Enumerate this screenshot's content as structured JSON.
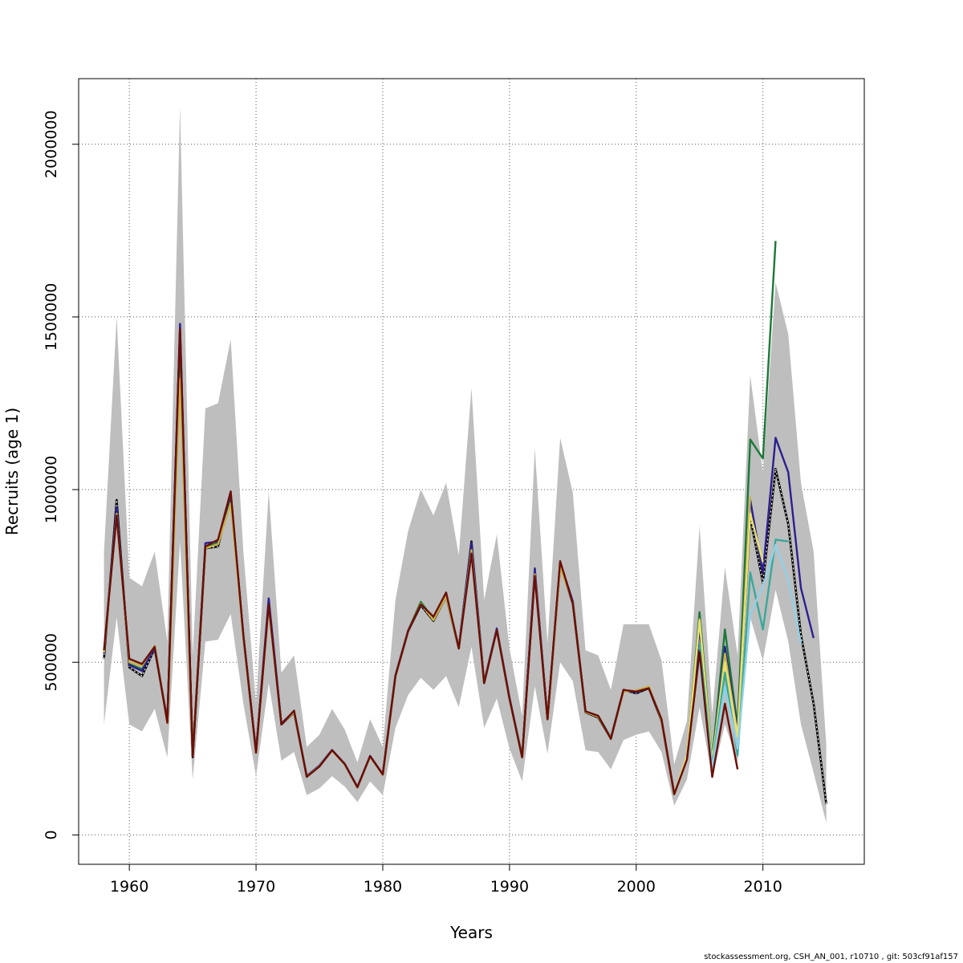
{
  "chart_data": {
    "type": "line",
    "xlabel": "Years",
    "ylabel": "Recruits (age 1)",
    "xlim": [
      1956,
      2018
    ],
    "ylim": [
      -85000,
      2190000
    ],
    "x_ticks": [
      1960,
      1970,
      1980,
      1990,
      2000,
      2010
    ],
    "y_ticks": [
      0,
      500000,
      1000000,
      1500000,
      2000000
    ],
    "grid": "dotted",
    "legend": "none",
    "band": {
      "name": "",
      "color": "#bebebe",
      "x": [
        1958,
        1959,
        1960,
        1961,
        1962,
        1963,
        1964,
        1965,
        1966,
        1967,
        1968,
        1969,
        1970,
        1971,
        1972,
        1973,
        1974,
        1975,
        1976,
        1977,
        1978,
        1979,
        1980,
        1981,
        1982,
        1983,
        1984,
        1985,
        1986,
        1987,
        1988,
        1989,
        1990,
        1991,
        1992,
        1993,
        1994,
        1995,
        1996,
        1997,
        1998,
        1999,
        2000,
        2001,
        2002,
        2003,
        2004,
        2005,
        2006,
        2007,
        2008,
        2009,
        2010,
        2011,
        2012,
        2013,
        2014,
        2015
      ],
      "upper": [
        820000,
        1500000,
        745000,
        720000,
        820000,
        560000,
        2110000,
        520000,
        1235000,
        1250000,
        1435000,
        820000,
        380000,
        995000,
        470000,
        520000,
        255000,
        290000,
        365000,
        305000,
        210000,
        335000,
        255000,
        680000,
        880000,
        1000000,
        925000,
        1020000,
        810000,
        1295000,
        680000,
        870000,
        540000,
        345000,
        1120000,
        555000,
        1150000,
        990000,
        535000,
        520000,
        420000,
        610000,
        610000,
        610000,
        505000,
        205000,
        330000,
        895000,
        350000,
        775000,
        520000,
        1330000,
        1050000,
        1600000,
        1450000,
        1020000,
        820000,
        260000
      ],
      "lower": [
        320000,
        630000,
        320000,
        300000,
        365000,
        225000,
        850000,
        160000,
        560000,
        565000,
        640000,
        380000,
        170000,
        440000,
        215000,
        240000,
        115000,
        135000,
        170000,
        140000,
        95000,
        155000,
        115000,
        310000,
        405000,
        455000,
        420000,
        460000,
        370000,
        545000,
        310000,
        395000,
        250000,
        155000,
        430000,
        235000,
        500000,
        445000,
        245000,
        240000,
        190000,
        275000,
        290000,
        300000,
        240000,
        85000,
        160000,
        370000,
        165000,
        320000,
        210000,
        630000,
        505000,
        710000,
        560000,
        320000,
        180000,
        35000
      ]
    },
    "series": [
      {
        "name": "",
        "color": "#000000",
        "dashed": true,
        "x": [
          1958,
          1959,
          1960,
          1961,
          1962,
          1963,
          1964,
          1965,
          1966,
          1967,
          1968,
          1969,
          1970,
          1971,
          1972,
          1973,
          1974,
          1975,
          1976,
          1977,
          1978,
          1979,
          1980,
          1981,
          1982,
          1983,
          1984,
          1985,
          1986,
          1987,
          1988,
          1989,
          1990,
          1991,
          1992,
          1993,
          1994,
          1995,
          1996,
          1997,
          1998,
          1999,
          2000,
          2001,
          2002,
          2003,
          2004,
          2005,
          2006,
          2007,
          2008,
          2009,
          2010,
          2011,
          2012,
          2013,
          2014,
          2015
        ],
        "values": [
          510000,
          970000,
          485000,
          460000,
          540000,
          330000,
          1460000,
          225000,
          830000,
          835000,
          985000,
          575000,
          240000,
          670000,
          320000,
          355000,
          170000,
          200000,
          245000,
          205000,
          138000,
          228000,
          175000,
          460000,
          590000,
          665000,
          620000,
          690000,
          540000,
          850000,
          440000,
          595000,
          395000,
          225000,
          760000,
          335000,
          780000,
          670000,
          355000,
          340000,
          280000,
          420000,
          410000,
          425000,
          330000,
          118000,
          220000,
          535000,
          180000,
          540000,
          300000,
          920000,
          730000,
          1060000,
          900000,
          580000,
          380000,
          90000
        ]
      },
      {
        "name": "",
        "color": "#1b7837",
        "dashed": false,
        "x": [
          1958,
          1959,
          1960,
          1961,
          1962,
          1963,
          1964,
          1965,
          1966,
          1967,
          1968,
          1969,
          1970,
          1971,
          1972,
          1973,
          1974,
          1975,
          1976,
          1977,
          1978,
          1979,
          1980,
          1981,
          1982,
          1983,
          1984,
          1985,
          1986,
          1987,
          1988,
          1989,
          1990,
          1991,
          1992,
          1993,
          1994,
          1995,
          1996,
          1997,
          1998,
          1999,
          2000,
          2001,
          2002,
          2003,
          2004,
          2005,
          2006,
          2007,
          2008,
          2009,
          2010,
          2011
        ],
        "values": [
          530000,
          945000,
          495000,
          480000,
          545000,
          325000,
          1430000,
          232000,
          835000,
          845000,
          985000,
          575000,
          240000,
          672000,
          322000,
          357000,
          170000,
          200000,
          245000,
          205000,
          138000,
          228000,
          175000,
          460000,
          592000,
          675000,
          625000,
          692000,
          542000,
          840000,
          442000,
          595000,
          396000,
          226000,
          765000,
          336000,
          782000,
          675000,
          358000,
          345000,
          282000,
          418000,
          415000,
          428000,
          332000,
          118000,
          225000,
          645000,
          220000,
          595000,
          315000,
          1145000,
          1090000,
          1720000
        ]
      },
      {
        "name": "",
        "color": "#2c1f8f",
        "dashed": false,
        "x": [
          1958,
          1959,
          1960,
          1961,
          1962,
          1963,
          1964,
          1965,
          1966,
          1967,
          1968,
          1969,
          1970,
          1971,
          1972,
          1973,
          1974,
          1975,
          1976,
          1977,
          1978,
          1979,
          1980,
          1981,
          1982,
          1983,
          1984,
          1985,
          1986,
          1987,
          1988,
          1989,
          1990,
          1991,
          1992,
          1993,
          1994,
          1995,
          1996,
          1997,
          1998,
          1999,
          2000,
          2001,
          2002,
          2003,
          2004,
          2005,
          2006,
          2007,
          2008,
          2009,
          2010,
          2011,
          2012,
          2013,
          2014
        ],
        "values": [
          525000,
          950000,
          492000,
          475000,
          543000,
          327000,
          1480000,
          230000,
          845000,
          850000,
          990000,
          578000,
          242000,
          685000,
          323000,
          358000,
          171000,
          201000,
          246000,
          206000,
          139000,
          229000,
          176000,
          462000,
          592000,
          668000,
          626000,
          694000,
          543000,
          845000,
          443000,
          598000,
          398000,
          227000,
          772000,
          337000,
          790000,
          676000,
          357000,
          344000,
          281000,
          419000,
          413000,
          426000,
          333000,
          119000,
          223000,
          600000,
          205000,
          545000,
          300000,
          970000,
          760000,
          1150000,
          1050000,
          715000,
          570000
        ]
      },
      {
        "name": "",
        "color": "#c8b24a",
        "dashed": false,
        "x": [
          1958,
          1959,
          1960,
          1961,
          1962,
          1963,
          1964,
          1965,
          1966,
          1967,
          1968,
          1969,
          1970,
          1971,
          1972,
          1973,
          1974,
          1975,
          1976,
          1977,
          1978,
          1979,
          1980,
          1981,
          1982,
          1983,
          1984,
          1985,
          1986,
          1987,
          1988,
          1989,
          1990,
          1991,
          1992,
          1993,
          1994,
          1995,
          1996,
          1997,
          1998,
          1999,
          2000,
          2001,
          2002,
          2003,
          2004,
          2005,
          2006,
          2007,
          2008,
          2009
        ],
        "values": [
          528000,
          930000,
          500000,
          490000,
          548000,
          323000,
          1320000,
          235000,
          830000,
          842000,
          960000,
          573000,
          238000,
          660000,
          321000,
          356000,
          169000,
          199000,
          244000,
          204000,
          137000,
          227000,
          174000,
          458000,
          590000,
          670000,
          622000,
          690000,
          540000,
          825000,
          441000,
          593000,
          394000,
          225000,
          755000,
          334000,
          775000,
          672000,
          356000,
          342000,
          280000,
          415000,
          418000,
          430000,
          331000,
          117000,
          222000,
          625000,
          205000,
          525000,
          290000,
          980000
        ]
      },
      {
        "name": "",
        "color": "#e8e26f",
        "dashed": false,
        "x": [
          2003,
          2004,
          2005,
          2006,
          2007,
          2008,
          2009,
          2010
        ],
        "values": [
          118000,
          230000,
          620000,
          215000,
          500000,
          285000,
          930000,
          790000
        ]
      },
      {
        "name": "",
        "color": "#3aa89a",
        "dashed": false,
        "x": [
          2005,
          2006,
          2007,
          2008,
          2009,
          2010,
          2011,
          2012
        ],
        "values": [
          555000,
          200000,
          470000,
          230000,
          760000,
          595000,
          855000,
          850000
        ]
      },
      {
        "name": "",
        "color": "#8fd1e8",
        "dashed": false,
        "x": [
          2005,
          2006,
          2007,
          2008,
          2009,
          2010,
          2011,
          2012,
          2013
        ],
        "values": [
          500000,
          195000,
          430000,
          250000,
          640000,
          720000,
          840000,
          740000,
          555000
        ]
      },
      {
        "name": "",
        "color": "#6b0f06",
        "dashed": false,
        "x": [
          1958,
          1959,
          1960,
          1961,
          1962,
          1963,
          1964,
          1965,
          1966,
          1967,
          1968,
          1969,
          1970,
          1971,
          1972,
          1973,
          1974,
          1975,
          1976,
          1977,
          1978,
          1979,
          1980,
          1981,
          1982,
          1983,
          1984,
          1985,
          1986,
          1987,
          1988,
          1989,
          1990,
          1991,
          1992,
          1993,
          1994,
          1995,
          1996,
          1997,
          1998,
          1999,
          2000,
          2001,
          2002,
          2003,
          2004,
          2005,
          2006,
          2007,
          2008
        ],
        "values": [
          535000,
          925000,
          510000,
          495000,
          545000,
          325000,
          1465000,
          228000,
          835000,
          855000,
          995000,
          578000,
          238000,
          668000,
          320000,
          360000,
          168000,
          198000,
          245000,
          205000,
          138000,
          228000,
          175000,
          460000,
          590000,
          668000,
          632000,
          702000,
          540000,
          815000,
          440000,
          593000,
          395000,
          225000,
          750000,
          335000,
          793000,
          670000,
          358000,
          345000,
          278000,
          420000,
          415000,
          425000,
          335000,
          118000,
          218000,
          530000,
          168000,
          380000,
          190000
        ]
      }
    ]
  },
  "footer": "stockassessment.org, CSH_AN_001, r10710 , git: 503cf91af157"
}
